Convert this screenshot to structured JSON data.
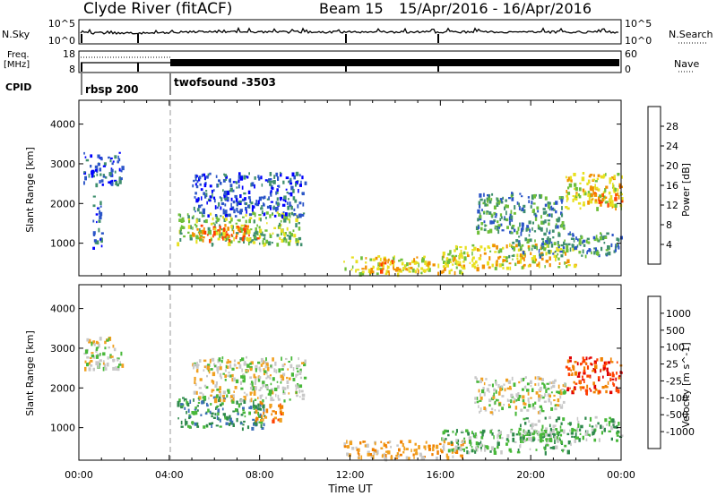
{
  "header": {
    "station": "Clyde River (fitACF)",
    "beam": "Beam 15",
    "date_range": "15/Apr/2016 - 16/Apr/2016"
  },
  "status_panels": {
    "nsky_label": "N.Sky",
    "nsearch_label": "N.Search",
    "nsky_top_tick": "10^5",
    "nsky_bottom_tick": "10^0",
    "nsearch_top_tick": "10^5",
    "nsearch_bottom_tick": "10^0",
    "freq_label_line1": "Freq.",
    "freq_label_line2": "[MHz]",
    "freq_top_tick": "18",
    "freq_bottom_tick": "8",
    "nave_label": "Nave",
    "nave_top_tick": "60",
    "nave_bottom_tick": "0",
    "cpid_label": "CPID",
    "cpid_programs": [
      {
        "name": "rbsp 200",
        "start_hour": 0
      },
      {
        "name": "twofsound -3503",
        "start_hour": 4
      }
    ]
  },
  "chart_data": [
    {
      "type": "heatmap",
      "panel": "power",
      "ylabel": "Slant Range [km]",
      "xlabel": "",
      "xlim": [
        0,
        24
      ],
      "ylim": [
        180,
        4600
      ],
      "yticks": [
        1000,
        2000,
        3000,
        4000
      ],
      "colorbar": {
        "label": "Power [dB]",
        "ticks": [
          "4",
          "8",
          "12",
          "16",
          "20",
          "24",
          "28"
        ],
        "colors": [
          "#0000ff",
          "#2b55c8",
          "#3f8f6e",
          "#6fbf3a",
          "#e8e020",
          "#f09000",
          "#ff4000",
          "#e00000"
        ]
      },
      "regions": [
        {
          "x0": 0.2,
          "x1": 1.9,
          "y0": 2500,
          "y1": 3300,
          "level": 1
        },
        {
          "x0": 0.6,
          "x1": 1.0,
          "y0": 900,
          "y1": 2200,
          "level": 1
        },
        {
          "x0": 4.3,
          "x1": 9.8,
          "y0": 1000,
          "y1": 1800,
          "level": 3
        },
        {
          "x0": 5.0,
          "x1": 8.0,
          "y0": 1100,
          "y1": 1500,
          "level": 5
        },
        {
          "x0": 5.0,
          "x1": 10.0,
          "y0": 1700,
          "y1": 2800,
          "level": 1
        },
        {
          "x0": 11.7,
          "x1": 17.0,
          "y0": 250,
          "y1": 700,
          "level": 4
        },
        {
          "x0": 12.5,
          "x1": 14.0,
          "y0": 300,
          "y1": 600,
          "level": 5
        },
        {
          "x0": 16.0,
          "x1": 22.0,
          "y0": 400,
          "y1": 1000,
          "level": 4
        },
        {
          "x0": 17.5,
          "x1": 21.5,
          "y0": 1300,
          "y1": 2300,
          "level": 2
        },
        {
          "x0": 19.0,
          "x1": 24.0,
          "y0": 700,
          "y1": 1300,
          "level": 2
        },
        {
          "x0": 21.5,
          "x1": 24.0,
          "y0": 1900,
          "y1": 2800,
          "level": 4
        },
        {
          "x0": 22.5,
          "x1": 24.0,
          "y0": 2000,
          "y1": 2500,
          "level": 5
        }
      ]
    },
    {
      "type": "heatmap",
      "panel": "velocity",
      "ylabel": "Slant Range [km]",
      "xlabel": "Time UT",
      "xlim": [
        0,
        24
      ],
      "ylim": [
        180,
        4600
      ],
      "yticks": [
        1000,
        2000,
        3000,
        4000
      ],
      "xticks": [
        "00:00",
        "04:00",
        "08:00",
        "12:00",
        "16:00",
        "20:00",
        "00:00"
      ],
      "colorbar": {
        "label": "Velocity [m s^-1]",
        "ticks": [
          "1000",
          "500",
          "100",
          "25",
          "-25",
          "-100",
          "-500",
          "-1000"
        ],
        "colors": [
          "#1a2fcc",
          "#3c6fb8",
          "#2f8a4c",
          "#48b83a",
          "#c8c8c8",
          "#f0a020",
          "#f08000",
          "#ff4000",
          "#e00000"
        ]
      },
      "regions": [
        {
          "x0": 0.2,
          "x1": 1.9,
          "y0": 2500,
          "y1": 3300,
          "level": 4
        },
        {
          "x0": 4.3,
          "x1": 8.2,
          "y0": 1000,
          "y1": 1800,
          "level": 2
        },
        {
          "x0": 7.8,
          "x1": 9.0,
          "y0": 1200,
          "y1": 1700,
          "level": 6
        },
        {
          "x0": 5.0,
          "x1": 10.0,
          "y0": 1700,
          "y1": 2800,
          "level": 4
        },
        {
          "x0": 11.7,
          "x1": 17.0,
          "y0": 250,
          "y1": 700,
          "level": 5
        },
        {
          "x0": 16.0,
          "x1": 22.0,
          "y0": 400,
          "y1": 1000,
          "level": 3
        },
        {
          "x0": 17.5,
          "x1": 21.5,
          "y0": 1400,
          "y1": 2300,
          "level": 4
        },
        {
          "x0": 19.5,
          "x1": 24.0,
          "y0": 700,
          "y1": 1300,
          "level": 3
        },
        {
          "x0": 21.5,
          "x1": 24.0,
          "y0": 1900,
          "y1": 2800,
          "level": 7
        }
      ]
    }
  ]
}
